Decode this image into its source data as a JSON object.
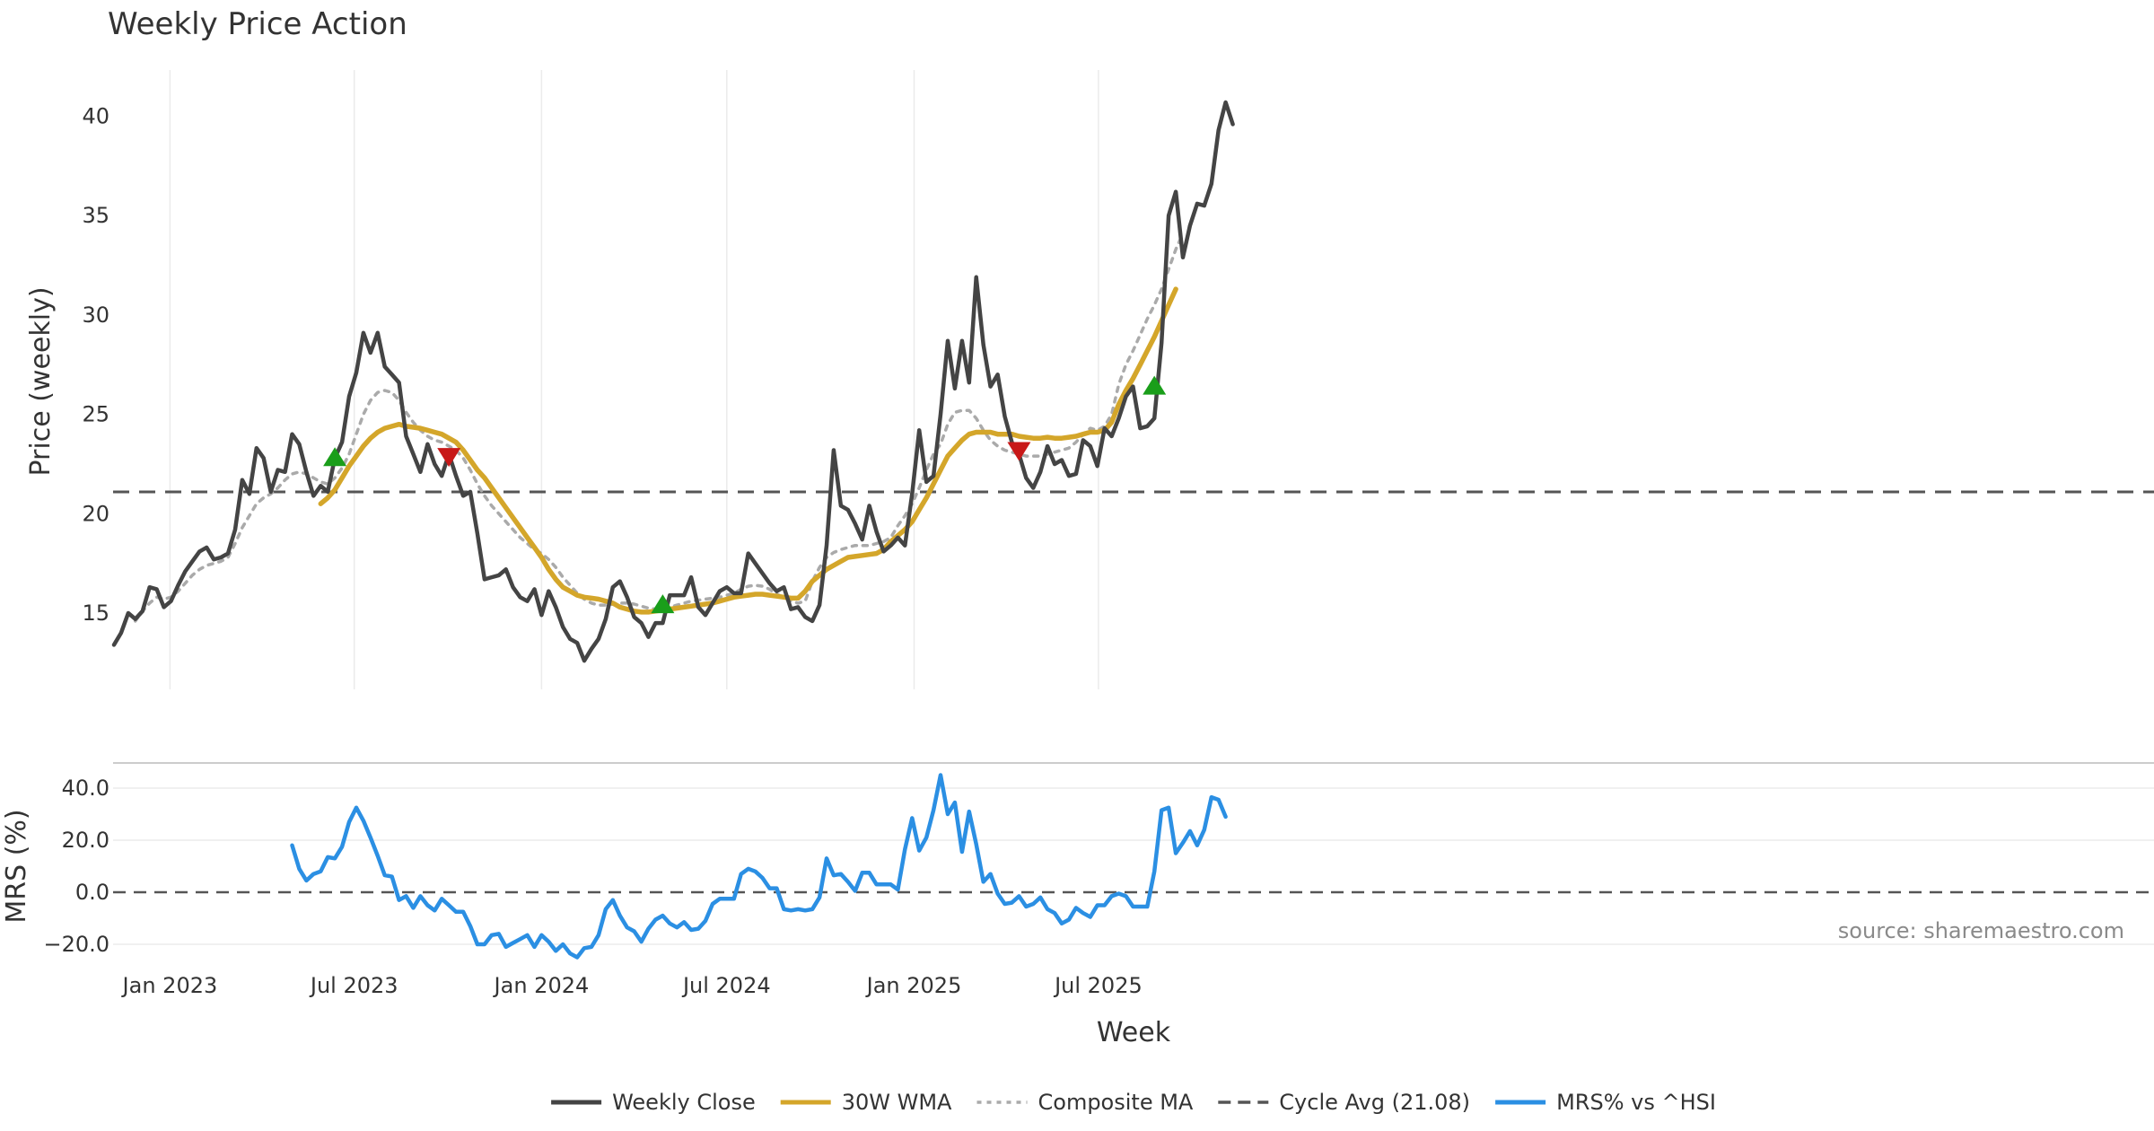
{
  "chart_data": [
    {
      "type": "line",
      "title": "Weekly Price Action",
      "xlabel": "",
      "ylabel": "Price (weekly)",
      "ylim": [
        11,
        43
      ],
      "yticks": [
        15,
        20,
        25,
        30,
        35,
        40
      ],
      "x_range": [
        "2022-11-07",
        "2025-10-27"
      ],
      "x_ticks": [
        "2023-01-01",
        "2023-07-01",
        "2024-01-01",
        "2024-07-01",
        "2025-01-01",
        "2025-07-01"
      ],
      "x_tick_labels": [
        "Jan 2023",
        "Jul 2023",
        "Jan 2024",
        "Jul 2024",
        "Jan 2025",
        "Jul 2025"
      ],
      "grid": "vertical",
      "series": [
        {
          "name": "Weekly Close",
          "color": "#444444",
          "start_index": 0,
          "values": [
            13.4,
            14,
            15,
            14.7,
            15.1,
            16.3,
            16.2,
            15.3,
            15.6,
            16.4,
            17.1,
            17.6,
            18.1,
            18.3,
            17.7,
            17.8,
            18,
            19.2,
            21.7,
            21,
            23.3,
            22.8,
            21.1,
            22.2,
            22.1,
            24,
            23.5,
            22.1,
            20.9,
            21.4,
            21.1,
            22.8,
            23.6,
            25.9,
            27.1,
            29.1,
            28.1,
            29.1,
            27.4,
            27,
            26.6,
            23.9,
            23,
            22.1,
            23.5,
            22.5,
            21.9,
            23,
            21.9,
            20.9,
            21.1,
            19,
            16.7,
            16.8,
            16.9,
            17.2,
            16.3,
            15.8,
            15.6,
            16.2,
            14.9,
            16.1,
            15.3,
            14.3,
            13.7,
            13.5,
            12.6,
            13.2,
            13.7,
            14.7,
            16.3,
            16.6,
            15.8,
            14.8,
            14.5,
            13.8,
            14.5,
            14.5,
            15.9,
            15.9,
            15.9,
            16.8,
            15.3,
            14.9,
            15.5,
            16.1,
            16.3,
            16,
            16,
            18,
            17.5,
            17,
            16.5,
            16.1,
            16.3,
            15.2,
            15.3,
            14.8,
            14.6,
            15.4,
            18.4,
            23.2,
            20.4,
            20.2,
            19.5,
            18.7,
            20.4,
            19.1,
            18.1,
            18.4,
            18.8,
            18.4,
            21,
            24.2,
            21.6,
            21.9,
            25,
            28.7,
            26.3,
            28.7,
            26.6,
            31.9,
            28.5,
            26.4,
            27,
            24.9,
            23.6,
            23,
            21.8,
            21.3,
            22.1,
            23.4,
            22.5,
            22.7,
            21.9,
            22,
            23.7,
            23.4,
            22.4,
            24.3,
            23.9,
            24.8,
            25.9,
            26.4,
            24.3,
            24.4,
            24.8,
            28.6,
            35,
            36.2,
            32.9,
            34.5,
            35.6,
            35.5,
            36.6,
            39.3,
            40.7,
            39.6
          ]
        },
        {
          "name": "30W WMA",
          "color": "#d4a62a",
          "start_index": 29,
          "values": [
            20.5,
            20.8,
            21.2,
            21.8,
            22.4,
            22.9,
            23.4,
            23.8,
            24.1,
            24.3,
            24.4,
            24.5,
            24.4,
            24.35,
            24.3,
            24.2,
            24.1,
            24,
            23.8,
            23.6,
            23.2,
            22.7,
            22.2,
            21.8,
            21.3,
            20.8,
            20.3,
            19.8,
            19.3,
            18.8,
            18.3,
            17.8,
            17.2,
            16.7,
            16.3,
            16.1,
            15.9,
            15.8,
            15.75,
            15.7,
            15.6,
            15.5,
            15.3,
            15.2,
            15.1,
            15.05,
            15.05,
            15.1,
            15.15,
            15.2,
            15.25,
            15.3,
            15.35,
            15.4,
            15.45,
            15.5,
            15.6,
            15.7,
            15.8,
            15.85,
            15.9,
            15.95,
            15.95,
            15.9,
            15.85,
            15.8,
            15.75,
            15.75,
            16.1,
            16.6,
            16.9,
            17.2,
            17.4,
            17.6,
            17.8,
            17.85,
            17.9,
            17.95,
            18,
            18.2,
            18.6,
            18.9,
            19.2,
            19.6,
            20.2,
            20.8,
            21.5,
            22.2,
            22.9,
            23.3,
            23.7,
            24,
            24.1,
            24.1,
            24.1,
            24,
            24,
            24,
            23.9,
            23.85,
            23.8,
            23.8,
            23.85,
            23.8,
            23.8,
            23.85,
            23.9,
            24,
            24.1,
            24.1,
            24.2,
            24.6,
            25.5,
            26.2,
            26.8,
            27.5,
            28.2,
            28.9,
            29.7,
            30.5,
            31.3
          ]
        },
        {
          "name": "Composite MA",
          "color": "#aaaaaa",
          "start_index": 3,
          "values": [
            14.6,
            15.1,
            15.5,
            15.8,
            15.7,
            15.8,
            16.1,
            16.5,
            16.9,
            17.2,
            17.4,
            17.5,
            17.6,
            17.8,
            18.5,
            19.3,
            19.9,
            20.5,
            20.8,
            21,
            21.3,
            21.7,
            22,
            22.1,
            22,
            21.8,
            21.6,
            21.5,
            21.8,
            22.3,
            23,
            24,
            25,
            25.7,
            26.1,
            26.2,
            26.1,
            25.7,
            25.1,
            24.6,
            24.2,
            23.9,
            23.7,
            23.6,
            23.4,
            23.2,
            22.8,
            22.2,
            21.5,
            20.9,
            20.4,
            20,
            19.6,
            19.2,
            18.8,
            18.5,
            18.2,
            18,
            17.7,
            17.3,
            16.8,
            16.4,
            16,
            15.7,
            15.5,
            15.4,
            15.4,
            15.45,
            15.5,
            15.5,
            15.45,
            15.35,
            15.25,
            15.2,
            15.2,
            15.3,
            15.4,
            15.5,
            15.6,
            15.65,
            15.7,
            15.75,
            15.8,
            15.9,
            16,
            16.2,
            16.35,
            16.4,
            16.35,
            16.2,
            15.95,
            15.8,
            15.6,
            15.5,
            15.6,
            16.6,
            17.3,
            17.8,
            18.05,
            18.2,
            18.3,
            18.4,
            18.4,
            18.4,
            18.5,
            18.6,
            18.8,
            19.4,
            19.9,
            20.5,
            21.3,
            22.2,
            23,
            23.5,
            24.5,
            25.1,
            25.2,
            25.2,
            24.8,
            24.2,
            23.7,
            23.4,
            23.2,
            23.1,
            23,
            22.9,
            22.9,
            22.9,
            23,
            23.1,
            23.2,
            23.3,
            23.6,
            24,
            24.3,
            24.2,
            24.4,
            25,
            26.5,
            27.5,
            28.2,
            29,
            29.8,
            30.5,
            31.3,
            32.3,
            33.3,
            34.1
          ]
        }
      ],
      "hlines": [
        {
          "name": "Cycle Avg (21.08)",
          "value": 21.08,
          "color": "#555555",
          "style": "dashed"
        }
      ],
      "markers": [
        {
          "type": "buy",
          "date_index": 31,
          "value": 22.8,
          "color": "#1a9e1a"
        },
        {
          "type": "sell",
          "date_index": 47,
          "value": 22.9,
          "color": "#c81818"
        },
        {
          "type": "buy",
          "date_index": 77,
          "value": 15.4,
          "color": "#1a9e1a"
        },
        {
          "type": "sell",
          "date_index": 127,
          "value": 23.2,
          "color": "#c81818"
        },
        {
          "type": "buy",
          "date_index": 146,
          "value": 26.4,
          "color": "#1a9e1a"
        }
      ],
      "annotations": [
        "source: sharemaestro.com"
      ]
    },
    {
      "type": "line",
      "title": "",
      "xlabel": "Week",
      "ylabel": "MRS (%)",
      "ylim": [
        -24,
        48
      ],
      "yticks": [
        -20.0,
        0.0,
        20.0,
        40.0
      ],
      "ytick_labels": [
        "−20.0",
        "0.0",
        "20.0",
        "40.0"
      ],
      "x_tick_labels": [
        "Jan 2023",
        "Jul 2023",
        "Jan 2024",
        "Jul 2024",
        "Jan 2025",
        "Jul 2025"
      ],
      "grid": "horizontal",
      "series": [
        {
          "name": "MRS% vs ^HSI",
          "color": "#2b8fe3",
          "start_index": 25,
          "values": [
            18,
            9,
            4.5,
            7,
            8,
            13.5,
            13,
            17.5,
            27,
            32.5,
            27.5,
            21,
            14,
            6.5,
            6,
            -3,
            -1.5,
            -6,
            -1.5,
            -5,
            -7,
            -2.5,
            -5,
            -7.5,
            -7.5,
            -13,
            -20,
            -20,
            -16.5,
            -16,
            -21,
            -19.5,
            -18,
            -16.5,
            -21,
            -16.5,
            -19,
            -22.5,
            -20,
            -23.5,
            -25,
            -21.5,
            -21,
            -16.5,
            -6.5,
            -3,
            -9,
            -13.5,
            -15,
            -19,
            -14,
            -10.5,
            -9,
            -12,
            -13.5,
            -11.5,
            -14.5,
            -14,
            -11,
            -4.5,
            -2.5,
            -2.5,
            -2.5,
            7,
            9,
            8,
            5.5,
            1.5,
            1.5,
            -6.5,
            -7,
            -6.5,
            -7,
            -6.5,
            -2,
            13,
            6.5,
            7,
            4,
            0.5,
            7.5,
            7.5,
            3,
            3,
            3,
            1,
            16.5,
            28.5,
            16,
            21,
            31.5,
            45,
            30,
            34.5,
            15.5,
            31,
            18.5,
            4,
            7,
            -0.5,
            -4.5,
            -4,
            -1.5,
            -5.5,
            -4.5,
            -2,
            -6.5,
            -8,
            -12,
            -10.5,
            -6,
            -8,
            -9.5,
            -5,
            -5,
            -1.5,
            -0.5,
            -1.5,
            -5.5,
            -5.5,
            -5.5,
            8,
            31.5,
            32.5,
            15,
            19,
            23.5,
            18,
            24,
            36.5,
            35.5,
            29
          ]
        }
      ],
      "hlines": [
        {
          "value": 0,
          "color": "#555555",
          "style": "dashed"
        }
      ]
    }
  ],
  "legend": {
    "placement": "bottom-center",
    "items": [
      {
        "label": "Weekly Close",
        "color": "#444444",
        "style": "solid"
      },
      {
        "label": "30W WMA",
        "color": "#d4a62a",
        "style": "solid"
      },
      {
        "label": "Composite MA",
        "color": "#aaaaaa",
        "style": "dotted"
      },
      {
        "label": "Cycle Avg (21.08)",
        "color": "#555555",
        "style": "dashed"
      },
      {
        "label": "MRS% vs ^HSI",
        "color": "#2b8fe3",
        "style": "solid"
      }
    ]
  }
}
